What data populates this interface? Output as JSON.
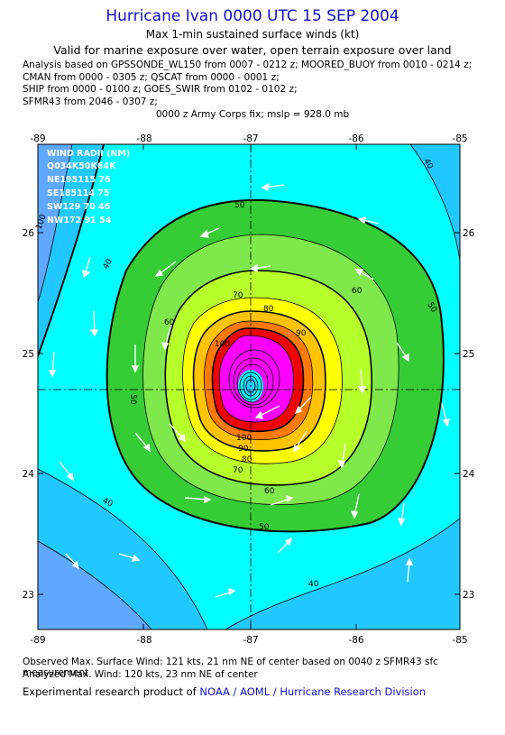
{
  "header": {
    "title": "Hurricane Ivan 0000 UTC 15 SEP 2004",
    "subtitle1": "Max 1-min sustained surface winds (kt)",
    "subtitle2": "Valid for marine exposure over water, open terrain exposure over land",
    "analysis_lines": [
      "Analysis based on  GPSSONDE_WL150 from 0007 - 0212 z;  MOORED_BUOY from 0010 - 0214 z;",
      "CMAN from 0000 - 0305 z;  QSCAT from 0000 - 0001 z;",
      "SHIP from 0000 - 0100 z;  GOES_SWIR from 0102 - 0102 z;",
      "SFMR43 from 2046 - 0307 z;"
    ],
    "fix_line": "0000 z Army Corps fix; mslp = 928.0 mb"
  },
  "axes": {
    "lon_ticks": [
      "-89",
      "-88",
      "-87",
      "-86",
      "-85"
    ],
    "lat_ticks": [
      "26",
      "25",
      "24",
      "23"
    ]
  },
  "wind_radii": {
    "title": "WIND RADII (NM)",
    "header": "Q034K50K64K",
    "rows": [
      "NE195115 76",
      "SE185114 75",
      "SW129 70 46",
      "NW172 91 54"
    ]
  },
  "contour_labels": [
    "40",
    "50",
    "60",
    "70",
    "80",
    "90",
    "100",
    "50",
    "60",
    "70",
    "80",
    "90",
    "100",
    "40",
    "50",
    "60",
    "40",
    "100",
    "40",
    "50",
    "60"
  ],
  "legend_colors": {
    "c30": "#5fa8ff",
    "c40": "#21c8ff",
    "c50": "#00ffff",
    "c60": "#36cc36",
    "c70": "#b7ff2a",
    "c80": "#ffff00",
    "c90": "#ffc300",
    "c100": "#ff7a00",
    "c110": "#f00000",
    "c120": "#ff00ff"
  },
  "footer": {
    "observed": "Observed Max. Surface Wind: 121 kts, 21 nm NE of center based on 0040 z SFMR43 sfc measurement",
    "analyzed": "Analyzed Max. Wind: 120 kts, 23 nm NE of center",
    "product_prefix": "Experimental research product of",
    "product_org": "NOAA / AOML / Hurricane Research Division"
  }
}
